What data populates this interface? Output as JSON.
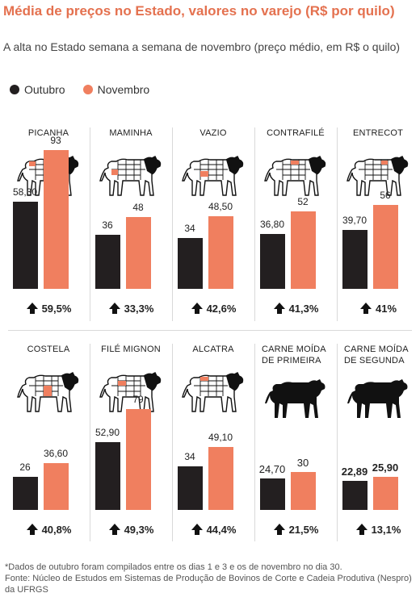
{
  "title": "Média de preços no Estado, valores no varejo (R$ por quilo)",
  "subtitle": "A alta no Estado semana a semana de novembro (preço médio, em R$ o quilo)",
  "legend": {
    "october": "Outubro",
    "november": "Novembro"
  },
  "colors": {
    "october": "#231f20",
    "november": "#f07f5f",
    "title": "#e4714f"
  },
  "footnote": {
    "line1": "*Dados de outubro foram compilados entre os dias 1 e 3 e os de novembro no dia 30.",
    "line2": "Fonte: Núcleo de Estudos em Sistemas de Produção de Bovinos de Corte e Cadeia Produtiva (Nespro) da UFRGS"
  },
  "chart_data": {
    "type": "bar",
    "series": [
      {
        "name": "Outubro"
      },
      {
        "name": "Novembro"
      }
    ],
    "panels": [
      {
        "name": [
          "PICANHA"
        ],
        "icon": "cow-picanha-icon",
        "values": [
          58.3,
          93
        ],
        "labels": [
          "58,30",
          "93"
        ],
        "change": "59,5%"
      },
      {
        "name": [
          "MAMINHA"
        ],
        "icon": "cow-maminha-icon",
        "values": [
          36,
          48
        ],
        "labels": [
          "36",
          "48"
        ],
        "change": "33,3%"
      },
      {
        "name": [
          "VAZIO"
        ],
        "icon": "cow-vazio-icon",
        "values": [
          34,
          48.5
        ],
        "labels": [
          "34",
          "48,50"
        ],
        "change": "42,6%"
      },
      {
        "name": [
          "CONTRAFILÉ"
        ],
        "icon": "cow-contrafile-icon",
        "values": [
          36.8,
          52
        ],
        "labels": [
          "36,80",
          "52"
        ],
        "change": "41,3%"
      },
      {
        "name": [
          "ENTRECOT"
        ],
        "icon": "cow-entrecot-icon",
        "values": [
          39.7,
          56
        ],
        "labels": [
          "39,70",
          "56"
        ],
        "change": "41%"
      },
      {
        "name": [
          "COSTELA"
        ],
        "icon": "cow-costela-icon",
        "values": [
          26,
          36.6
        ],
        "labels": [
          "26",
          "36,60"
        ],
        "change": "40,8%"
      },
      {
        "name": [
          "FILÉ MIGNON"
        ],
        "icon": "cow-file-mignon-icon",
        "values": [
          52.9,
          79
        ],
        "labels": [
          "52,90",
          "79"
        ],
        "change": "49,3%"
      },
      {
        "name": [
          "ALCATRA"
        ],
        "icon": "cow-alcatra-icon",
        "values": [
          34,
          49.1
        ],
        "labels": [
          "34",
          "49,10"
        ],
        "change": "44,4%"
      },
      {
        "name": [
          "CARNE MOÍDA",
          "DE PRIMEIRA"
        ],
        "icon": "cow-silhouette-icon",
        "values": [
          24.7,
          30
        ],
        "labels": [
          "24,70",
          "30"
        ],
        "change": "21,5%"
      },
      {
        "name": [
          "CARNE MOÍDA",
          "DE SEGUNDA"
        ],
        "icon": "cow-silhouette-icon",
        "values": [
          22.89,
          25.9
        ],
        "labels": [
          "22,89",
          "25,90"
        ],
        "change": "13,1%"
      }
    ]
  }
}
